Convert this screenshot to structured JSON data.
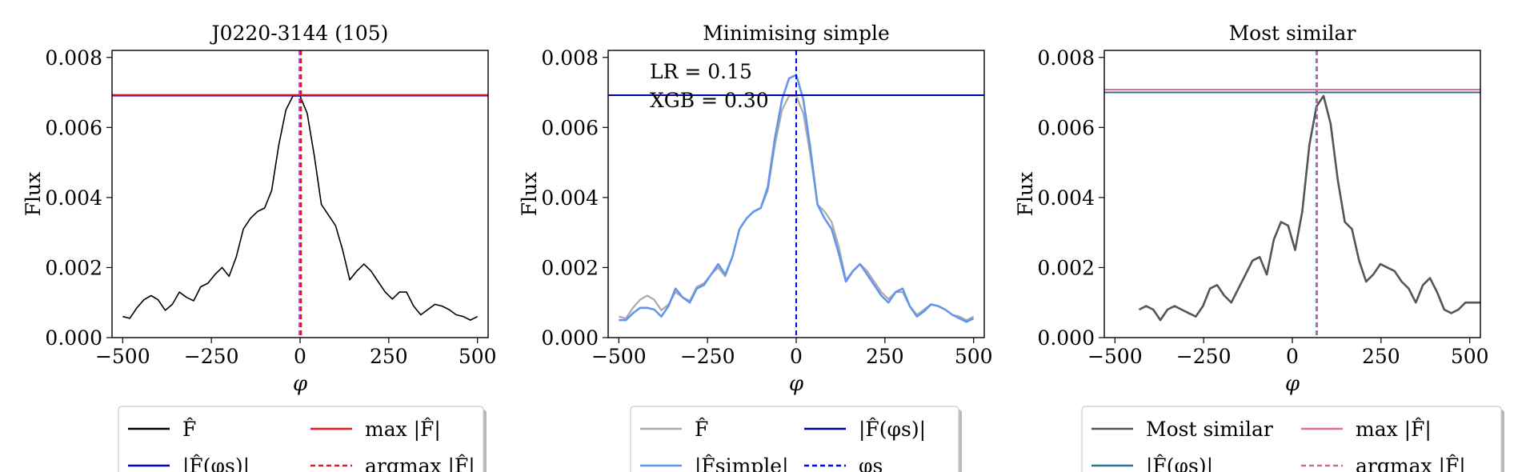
{
  "figure": {
    "panels": [
      {
        "title": "J0220-3144 (105)",
        "xlabel": "φ",
        "ylabel": "Flux",
        "legend": {
          "items": [
            {
              "label": "F̂",
              "color": "#000000",
              "dash": false
            },
            {
              "label": "max |F̂|",
              "color": "#e41a1c",
              "dash": false
            },
            {
              "label": "|F̂(φs)|",
              "color": "#0000cc",
              "dash": false
            },
            {
              "label": "argmax |F̂|",
              "color": "#e41a1c",
              "dash": true
            }
          ]
        }
      },
      {
        "title": "Minimising simple",
        "xlabel": "φ",
        "ylabel": "Flux",
        "annotations": [
          "LR = 0.15",
          "XGB = 0.30"
        ],
        "legend": {
          "items": [
            {
              "label": "F̂",
              "color": "#aaaaaa",
              "dash": false
            },
            {
              "label": "|F̂(φs)|",
              "color": "#0000aa",
              "dash": false
            },
            {
              "label": "|F̂simple|",
              "color": "#6495ed",
              "dash": false
            },
            {
              "label": "φs",
              "color": "#0000ff",
              "dash": true
            }
          ]
        }
      },
      {
        "title": "Most similar",
        "xlabel": "φ",
        "ylabel": "Flux",
        "legend": {
          "items": [
            {
              "label": "Most similar",
              "color": "#555555",
              "dash": false
            },
            {
              "label": "max |F̂|",
              "color": "#e07090",
              "dash": false
            },
            {
              "label": "|F̂(φs)|",
              "color": "#2f6f8f",
              "dash": false
            },
            {
              "label": "argmax |F̂|",
              "color": "#d06a90",
              "dash": true
            }
          ]
        }
      }
    ]
  },
  "chart_data": [
    {
      "type": "line",
      "title": "J0220-3144 (105)",
      "xlabel": "φ",
      "ylabel": "Flux",
      "xlim": [
        -530,
        530
      ],
      "ylim": [
        0,
        0.0082
      ],
      "xticks": [
        -500,
        -250,
        0,
        250,
        500
      ],
      "xtick_labels": [
        "−500",
        "−250",
        "0",
        "250",
        "500"
      ],
      "yticks": [
        0,
        0.002,
        0.004,
        0.006,
        0.008
      ],
      "ytick_labels": [
        "0.000",
        "0.002",
        "0.004",
        "0.006",
        "0.008"
      ],
      "series": [
        {
          "name": "F̂",
          "color": "#000000",
          "width": 1.6,
          "x": [
            -500,
            -480,
            -460,
            -440,
            -420,
            -400,
            -380,
            -360,
            -340,
            -320,
            -300,
            -280,
            -260,
            -240,
            -220,
            -200,
            -180,
            -160,
            -140,
            -120,
            -100,
            -80,
            -60,
            -40,
            -20,
            0,
            20,
            40,
            60,
            80,
            100,
            120,
            140,
            160,
            180,
            200,
            220,
            240,
            260,
            280,
            300,
            320,
            340,
            360,
            380,
            400,
            420,
            440,
            460,
            480,
            500
          ],
          "y": [
            0.0006,
            0.00055,
            0.00085,
            0.00108,
            0.0012,
            0.00108,
            0.00078,
            0.00095,
            0.0013,
            0.00115,
            0.00105,
            0.00145,
            0.00155,
            0.0018,
            0.002,
            0.00175,
            0.0023,
            0.0031,
            0.0034,
            0.0036,
            0.0037,
            0.0042,
            0.0055,
            0.0065,
            0.0069,
            0.0069,
            0.0064,
            0.0052,
            0.0038,
            0.0035,
            0.0032,
            0.0025,
            0.00165,
            0.0019,
            0.0021,
            0.0019,
            0.0016,
            0.0013,
            0.0011,
            0.0013,
            0.0013,
            0.0009,
            0.00065,
            0.0008,
            0.00095,
            0.0009,
            0.0008,
            0.00065,
            0.0006,
            0.0005,
            0.0006
          ]
        }
      ],
      "hlines": [
        {
          "name": "|F̂(φs)|",
          "y": 0.00691,
          "color": "#0000cc",
          "dash": false
        },
        {
          "name": "max |F̂|",
          "y": 0.00693,
          "color": "#e41a1c",
          "dash": false
        }
      ],
      "vlines": [
        {
          "name": "φs",
          "x": 0,
          "color": "#0000ff",
          "dash": true
        },
        {
          "name": "argmax |F̂|",
          "x": 3,
          "color": "#e41a1c",
          "dash": true
        },
        {
          "name": "argmax",
          "x": -2,
          "color": "#cc33cc",
          "dash": true
        }
      ]
    },
    {
      "type": "line",
      "title": "Minimising simple",
      "xlabel": "φ",
      "ylabel": "Flux",
      "xlim": [
        -530,
        530
      ],
      "ylim": [
        0,
        0.0082
      ],
      "xticks": [
        -500,
        -250,
        0,
        250,
        500
      ],
      "xtick_labels": [
        "−500",
        "−250",
        "0",
        "250",
        "500"
      ],
      "yticks": [
        0,
        0.002,
        0.004,
        0.006,
        0.008
      ],
      "ytick_labels": [
        "0.000",
        "0.002",
        "0.004",
        "0.006",
        "0.008"
      ],
      "series": [
        {
          "name": "F̂",
          "color": "#aaaaaa",
          "width": 2.2,
          "x": [
            -500,
            -480,
            -460,
            -440,
            -420,
            -400,
            -380,
            -360,
            -340,
            -320,
            -300,
            -280,
            -260,
            -240,
            -220,
            -200,
            -180,
            -160,
            -140,
            -120,
            -100,
            -80,
            -60,
            -40,
            -20,
            0,
            20,
            40,
            60,
            80,
            100,
            120,
            140,
            160,
            180,
            200,
            220,
            240,
            260,
            280,
            300,
            320,
            340,
            360,
            380,
            400,
            420,
            440,
            460,
            480,
            500
          ],
          "y": [
            0.0006,
            0.00055,
            0.00085,
            0.00108,
            0.0012,
            0.00108,
            0.00078,
            0.00095,
            0.0013,
            0.00115,
            0.00105,
            0.00145,
            0.00155,
            0.0018,
            0.002,
            0.00175,
            0.0023,
            0.0031,
            0.0034,
            0.0036,
            0.0037,
            0.0042,
            0.0055,
            0.0065,
            0.0069,
            0.0069,
            0.0064,
            0.0052,
            0.0038,
            0.0036,
            0.0033,
            0.0026,
            0.00165,
            0.0019,
            0.0021,
            0.0019,
            0.0016,
            0.0013,
            0.0011,
            0.0013,
            0.0013,
            0.0009,
            0.00065,
            0.0008,
            0.00095,
            0.0009,
            0.0008,
            0.00065,
            0.0006,
            0.0005,
            0.0006
          ]
        },
        {
          "name": "|F̂simple|",
          "color": "#6495ed",
          "width": 2.6,
          "x": [
            -500,
            -480,
            -460,
            -440,
            -420,
            -400,
            -380,
            -360,
            -340,
            -320,
            -300,
            -280,
            -260,
            -240,
            -220,
            -200,
            -180,
            -160,
            -140,
            -120,
            -100,
            -80,
            -60,
            -40,
            -20,
            0,
            20,
            40,
            60,
            80,
            100,
            120,
            140,
            160,
            180,
            200,
            220,
            240,
            260,
            280,
            300,
            320,
            340,
            360,
            380,
            400,
            420,
            440,
            460,
            480,
            500
          ],
          "y": [
            0.0005,
            0.0005,
            0.0007,
            0.00085,
            0.00085,
            0.0008,
            0.0006,
            0.0009,
            0.0014,
            0.00115,
            0.001,
            0.0014,
            0.0015,
            0.0018,
            0.0021,
            0.0018,
            0.0023,
            0.0031,
            0.0034,
            0.0036,
            0.0037,
            0.0043,
            0.0057,
            0.0068,
            0.0074,
            0.0075,
            0.0068,
            0.0054,
            0.0038,
            0.0034,
            0.0031,
            0.0024,
            0.0016,
            0.0019,
            0.0021,
            0.0018,
            0.0015,
            0.0012,
            0.001,
            0.0013,
            0.0014,
            0.0009,
            0.0006,
            0.00075,
            0.00095,
            0.0009,
            0.0008,
            0.00065,
            0.00055,
            0.00045,
            0.00055
          ]
        }
      ],
      "hlines": [
        {
          "name": "|F̂(φs)|",
          "y": 0.00692,
          "color": "#0000aa",
          "dash": false
        }
      ],
      "vlines": [
        {
          "name": "φs",
          "x": 0,
          "color": "#0000ff",
          "dash": true
        }
      ]
    },
    {
      "type": "line",
      "title": "Most similar",
      "xlabel": "φ",
      "ylabel": "Flux",
      "xlim": [
        -530,
        530
      ],
      "ylim": [
        0,
        0.0082
      ],
      "xticks": [
        -500,
        -250,
        0,
        250,
        500
      ],
      "xtick_labels": [
        "−500",
        "−250",
        "0",
        "250",
        "500"
      ],
      "yticks": [
        0,
        0.002,
        0.004,
        0.006,
        0.008
      ],
      "ytick_labels": [
        "0.000",
        "0.002",
        "0.004",
        "0.006",
        "0.008"
      ],
      "series": [
        {
          "name": "Most similar",
          "color": "#555555",
          "width": 2.6,
          "x": [
            -500,
            -480,
            -460,
            -440,
            -420,
            -400,
            -380,
            -360,
            -340,
            -320,
            -300,
            -280,
            -260,
            -240,
            -220,
            -200,
            -180,
            -160,
            -140,
            -120,
            -100,
            -80,
            -60,
            -40,
            -20,
            0,
            20,
            40,
            60,
            80,
            100,
            120,
            140,
            160,
            180,
            200,
            220,
            240,
            260,
            280,
            300,
            320,
            340,
            360,
            380,
            400,
            420,
            440,
            460,
            480,
            500
          ],
          "y": [
            0.0008,
            0.0009,
            0.0008,
            0.0005,
            0.0008,
            0.0009,
            0.0008,
            0.0007,
            0.0006,
            0.0009,
            0.0014,
            0.0015,
            0.0012,
            0.001,
            0.0014,
            0.0018,
            0.0022,
            0.0023,
            0.0018,
            0.0028,
            0.0033,
            0.0032,
            0.0025,
            0.0036,
            0.0055,
            0.0066,
            0.0069,
            0.0061,
            0.0045,
            0.0033,
            0.0031,
            0.0022,
            0.0016,
            0.0018,
            0.0021,
            0.002,
            0.0019,
            0.0016,
            0.0014,
            0.001,
            0.0015,
            0.0017,
            0.0013,
            0.0008,
            0.0007,
            0.0008,
            0.001,
            0.001,
            0.001,
            0.001,
            0.001
          ]
        }
      ],
      "hlines": [
        {
          "name": "|F̂(φs)|",
          "y": 0.007,
          "color": "#2f6f8f",
          "dash": false
        },
        {
          "name": "max |F̂|",
          "y": 0.00708,
          "color": "#e07090",
          "dash": false
        }
      ],
      "vlines": [
        {
          "name": "φs",
          "x": 68,
          "color": "#2f6f8f",
          "dash": true
        },
        {
          "name": "argmax |F̂|",
          "x": 70,
          "color": "#d06a90",
          "dash": true
        }
      ],
      "x_shift": 68
    }
  ]
}
